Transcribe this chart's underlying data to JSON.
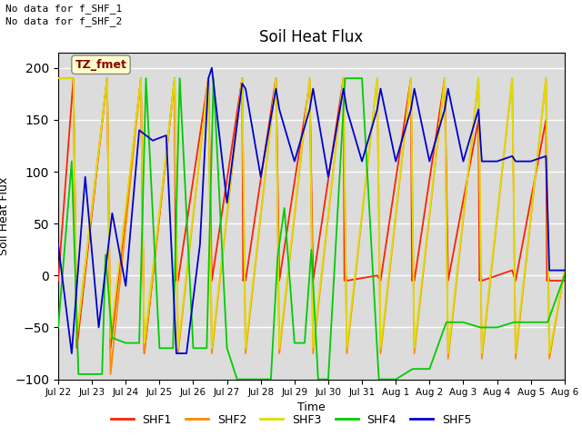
{
  "title": "Soil Heat Flux",
  "ylabel": "Soil Heat Flux",
  "xlabel": "Time",
  "annotation_text": "TZ_fmet",
  "no_data_lines": [
    "No data for f_SHF_1",
    "No data for f_SHF_2"
  ],
  "ylim": [
    -100,
    215
  ],
  "yticks": [
    -100,
    -50,
    0,
    50,
    100,
    150,
    200
  ],
  "bg_color": "#dcdcdc",
  "colors": {
    "SHF1": "#ff2200",
    "SHF2": "#ff8800",
    "SHF3": "#dddd00",
    "SHF4": "#00cc00",
    "SHF5": "#0000cc"
  },
  "x_labels": [
    "Jul 22",
    "Jul 23",
    "Jul 24",
    "Jul 25",
    "Jul 26",
    "Jul 27",
    "Jul 28",
    "Jul 29",
    "Jul 30",
    "Jul 31",
    "Aug 1",
    "Aug 2",
    "Aug 3",
    "Aug 4",
    "Aug 5",
    "Aug 6"
  ],
  "SHF1_x": [
    0,
    0.45,
    0.55,
    1.45,
    1.55,
    2.45,
    2.55,
    3.45,
    3.48,
    3.52,
    3.55,
    4.45,
    4.55,
    5.45,
    5.48,
    5.52,
    5.55,
    6.45,
    6.55,
    7.45,
    7.55,
    8.45,
    8.48,
    8.52,
    8.55,
    9.45,
    9.55,
    10.45,
    10.48,
    10.52,
    10.55,
    11.45,
    11.55,
    12.45,
    12.48,
    12.52,
    12.55,
    13.45,
    13.55,
    14.45,
    14.48,
    14.52,
    14.55,
    15
  ],
  "SHF1_y": [
    -5,
    190,
    -70,
    190,
    -70,
    190,
    -75,
    190,
    -5,
    0,
    -5,
    190,
    -5,
    190,
    -5,
    0,
    -5,
    190,
    -5,
    185,
    -5,
    190,
    -5,
    0,
    -5,
    0,
    -5,
    190,
    -5,
    0,
    -5,
    190,
    -5,
    150,
    -5,
    0,
    -5,
    5,
    -5,
    150,
    -5,
    0,
    -5,
    -5
  ],
  "SHF2_x": [
    0,
    0.45,
    0.55,
    1.45,
    1.55,
    2.45,
    2.55,
    3.45,
    3.55,
    4.45,
    4.55,
    5.45,
    5.55,
    6.45,
    6.55,
    7.45,
    7.55,
    8.45,
    8.55,
    9.45,
    9.55,
    10.45,
    10.55,
    11.45,
    11.55,
    12.45,
    12.55,
    13.45,
    13.55,
    14.45,
    14.55,
    15
  ],
  "SHF2_y": [
    190,
    190,
    -60,
    190,
    -95,
    190,
    -75,
    190,
    -75,
    190,
    -75,
    190,
    -75,
    190,
    -75,
    190,
    -75,
    190,
    -75,
    190,
    -75,
    190,
    -75,
    190,
    -80,
    190,
    -80,
    190,
    -80,
    190,
    -80,
    5
  ],
  "SHF3_x": [
    0,
    0.45,
    0.55,
    1.45,
    1.55,
    2.45,
    2.55,
    3.45,
    3.55,
    4.45,
    4.55,
    5.45,
    5.55,
    6.45,
    6.55,
    7.45,
    7.55,
    8.45,
    8.55,
    9.45,
    9.55,
    10.45,
    10.55,
    11.45,
    11.55,
    12.45,
    12.55,
    13.45,
    13.55,
    14.45,
    14.55,
    15
  ],
  "SHF3_y": [
    190,
    190,
    -60,
    190,
    -60,
    190,
    -65,
    190,
    -70,
    190,
    -70,
    190,
    -70,
    190,
    -70,
    190,
    -70,
    190,
    -70,
    190,
    -70,
    190,
    -70,
    190,
    -75,
    190,
    -75,
    190,
    -75,
    190,
    -75,
    5
  ],
  "SHF4_x": [
    0,
    0.4,
    0.6,
    1.3,
    1.4,
    1.6,
    2.0,
    2.4,
    2.6,
    3.0,
    3.4,
    3.6,
    4.0,
    4.4,
    4.6,
    5.0,
    5.3,
    5.7,
    6.0,
    6.3,
    6.5,
    6.7,
    7.0,
    7.3,
    7.5,
    7.7,
    8.0,
    8.5,
    9.0,
    9.5,
    10.0,
    10.5,
    11.0,
    11.5,
    12.0,
    12.5,
    13.0,
    13.5,
    14.0,
    14.5,
    15
  ],
  "SHF4_y": [
    -50,
    110,
    -95,
    -95,
    20,
    -60,
    -65,
    -65,
    190,
    -70,
    -70,
    190,
    -70,
    -70,
    190,
    -70,
    -100,
    -100,
    -100,
    -100,
    18,
    65,
    -65,
    -65,
    25,
    -100,
    -100,
    190,
    190,
    -100,
    -100,
    -90,
    -90,
    -45,
    -45,
    -50,
    -50,
    -45,
    -45,
    -45,
    0
  ],
  "SHF5_x": [
    0,
    0.4,
    0.8,
    1.2,
    1.6,
    2.0,
    2.4,
    2.8,
    3.2,
    3.5,
    3.8,
    4.2,
    4.45,
    4.55,
    5.0,
    5.45,
    5.55,
    6.0,
    6.45,
    6.55,
    7.0,
    7.45,
    7.55,
    8.0,
    8.45,
    8.55,
    9.0,
    9.45,
    9.55,
    10.0,
    10.45,
    10.55,
    11.0,
    11.45,
    11.55,
    12.0,
    12.45,
    12.55,
    13.0,
    13.45,
    13.55,
    14.0,
    14.45,
    14.55,
    15
  ],
  "SHF5_y": [
    30,
    -75,
    95,
    -50,
    60,
    -10,
    140,
    130,
    135,
    -75,
    -75,
    30,
    190,
    200,
    70,
    185,
    180,
    95,
    180,
    160,
    110,
    160,
    180,
    95,
    180,
    160,
    110,
    160,
    180,
    110,
    160,
    180,
    110,
    160,
    180,
    110,
    160,
    110,
    110,
    115,
    110,
    110,
    115,
    5,
    5
  ]
}
